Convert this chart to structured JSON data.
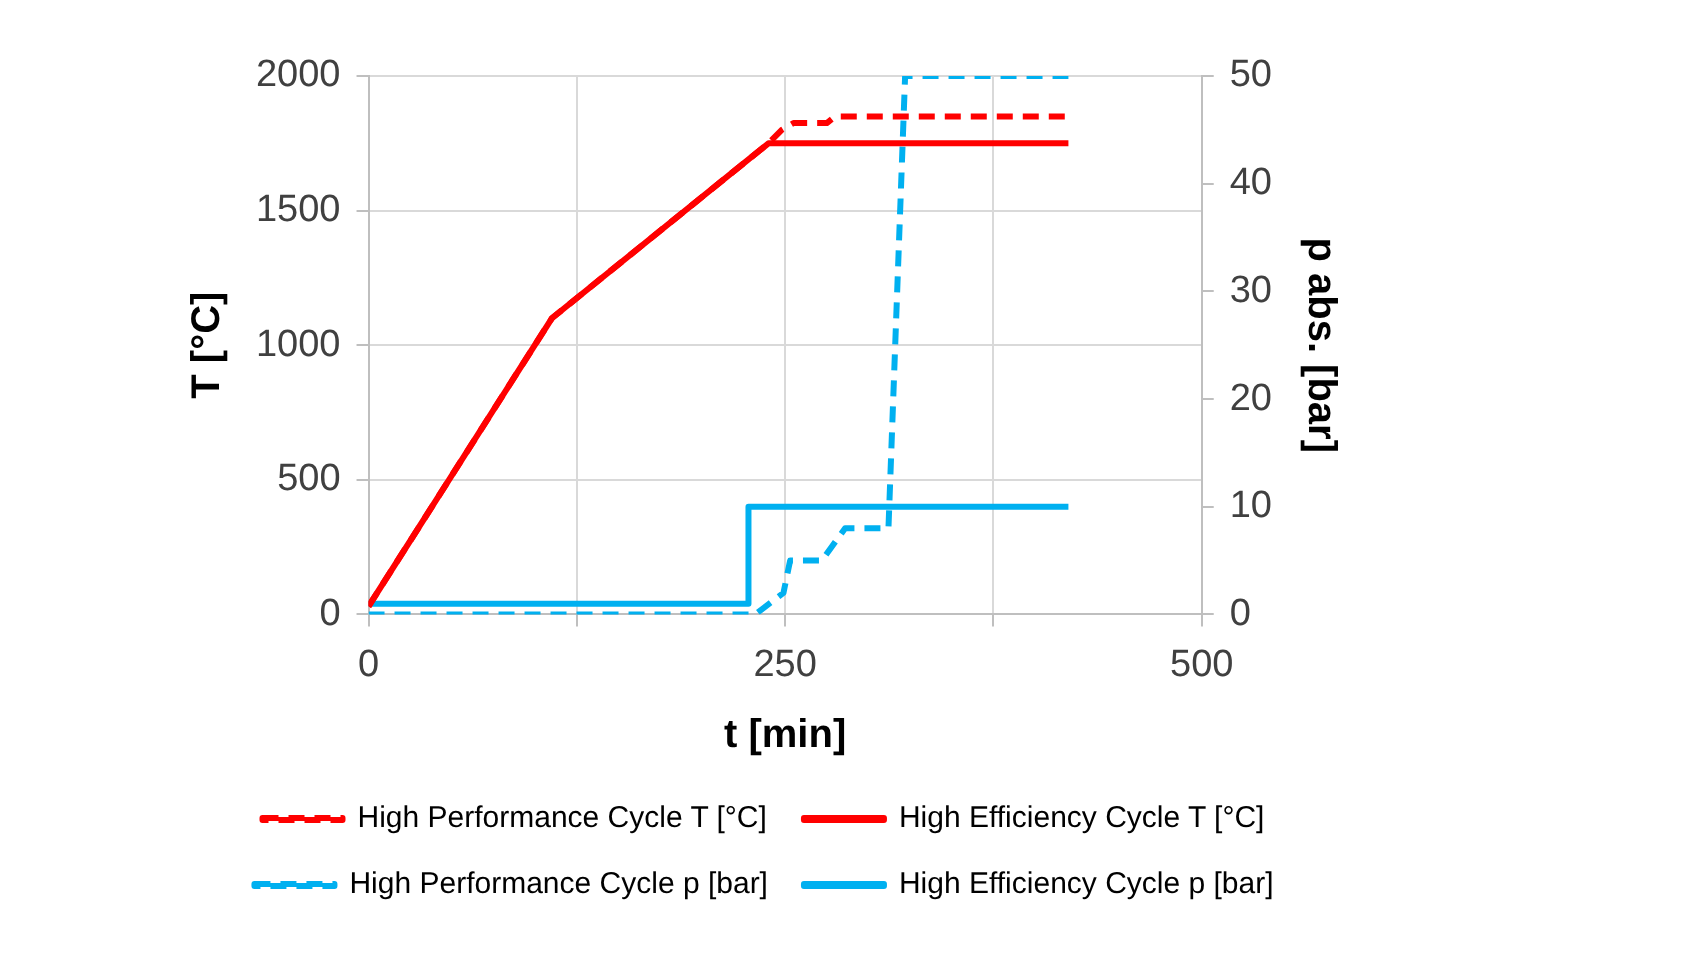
{
  "chart_data": {
    "type": "line",
    "xlabel": "t [min]",
    "ylabel": "T [°C]",
    "y2label": "p abs. [bar]",
    "xlim": [
      0,
      500
    ],
    "xticks": [
      0,
      {
        "value": 125,
        "label": null
      },
      250,
      {
        "value": 375,
        "label": null
      },
      500
    ],
    "ylim": [
      0,
      2000
    ],
    "yticks": [
      0,
      500,
      1000,
      1500,
      2000
    ],
    "y2lim": [
      0,
      50
    ],
    "y2ticks": [
      0,
      10,
      20,
      30,
      40,
      50
    ],
    "grid": true,
    "legend": "bottom",
    "marker": "none",
    "series": [
      {
        "name": "High Performance Cycle T [°C]",
        "color": "#ff0000",
        "line_style": "dashed",
        "x": [
          0,
          110,
          240,
          248,
          255,
          275,
          280,
          420
        ],
        "values": [
          30,
          1100,
          1750,
          1800,
          1825,
          1825,
          1850,
          1850
        ]
      },
      {
        "name": "High Efficiency Cycle T [°C]",
        "color": "#ff0000",
        "line_style": "solid",
        "x": [
          0,
          110,
          240,
          420
        ],
        "values": [
          30,
          1100,
          1750,
          1750
        ]
      },
      {
        "name": "High Performance Cycle p [bar]",
        "color": "#00b0f0",
        "line_style": "dashed",
        "axis": "y2",
        "x": [
          0,
          232,
          249,
          253,
          272,
          286,
          312,
          322,
          420
        ],
        "values": [
          0,
          0,
          2,
          5,
          5,
          8,
          8,
          50,
          50
        ]
      },
      {
        "name": "High Efficiency Cycle p [bar]",
        "color": "#00b0f0",
        "line_style": "solid",
        "axis": "y2",
        "x": [
          0,
          228,
          228,
          420
        ],
        "values": [
          1,
          1,
          10,
          10
        ]
      }
    ]
  }
}
